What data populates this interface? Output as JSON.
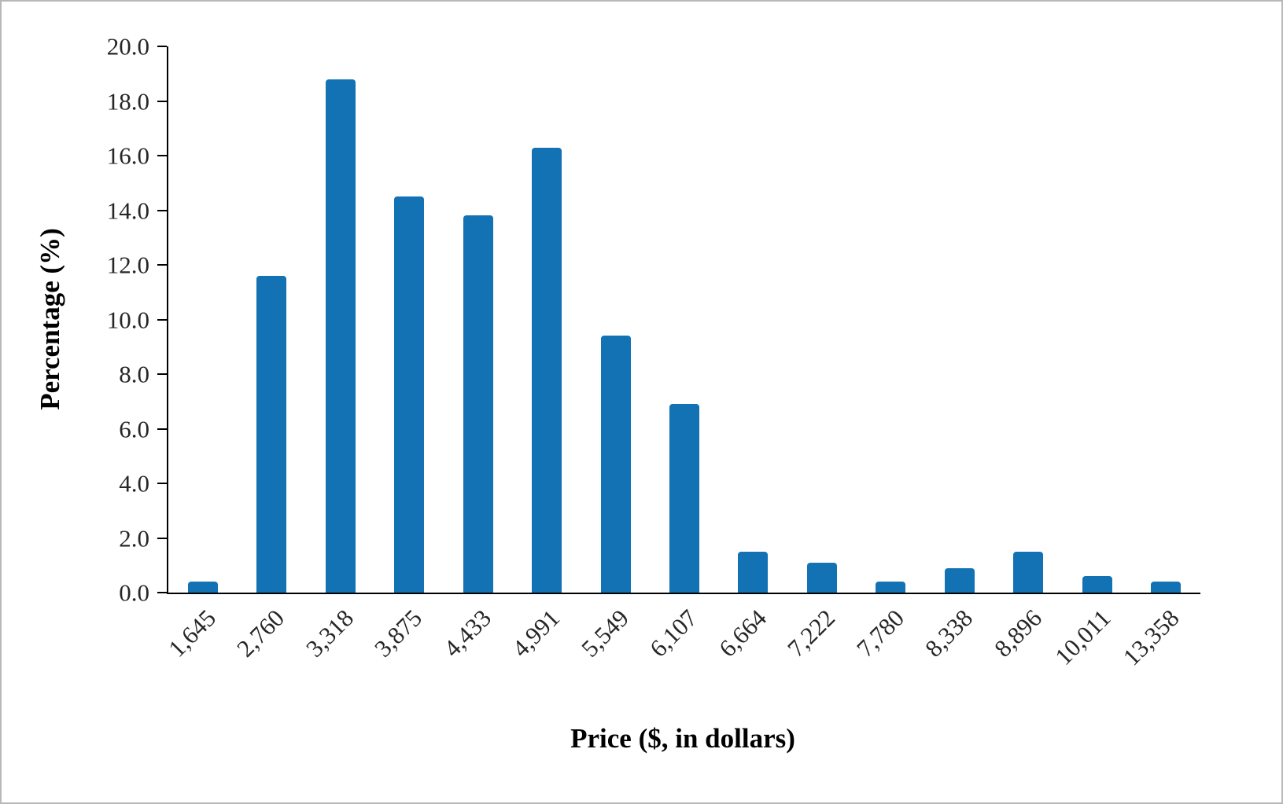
{
  "chart_data": {
    "type": "bar",
    "title": "",
    "xlabel": "Price ($, in dollars)",
    "ylabel": "Percentage (%)",
    "categories": [
      "1,645",
      "2,760",
      "3,318",
      "3,875",
      "4,433",
      "4,991",
      "5,549",
      "6,107",
      "6,664",
      "7,222",
      "7,780",
      "8,338",
      "8,896",
      "10,011",
      "13,358"
    ],
    "values": [
      0.4,
      11.6,
      18.8,
      14.5,
      13.8,
      16.3,
      9.4,
      6.9,
      1.5,
      1.1,
      0.4,
      0.9,
      1.5,
      0.6,
      0.4
    ],
    "ylim": [
      0,
      20
    ],
    "ytick_step": 2,
    "ytick_labels": [
      "0.0",
      "2.0",
      "4.0",
      "6.0",
      "8.0",
      "10.0",
      "12.0",
      "14.0",
      "16.0",
      "18.0",
      "20.0"
    ],
    "bar_color": "#1272b4",
    "grid": false,
    "legend_position": "none"
  }
}
